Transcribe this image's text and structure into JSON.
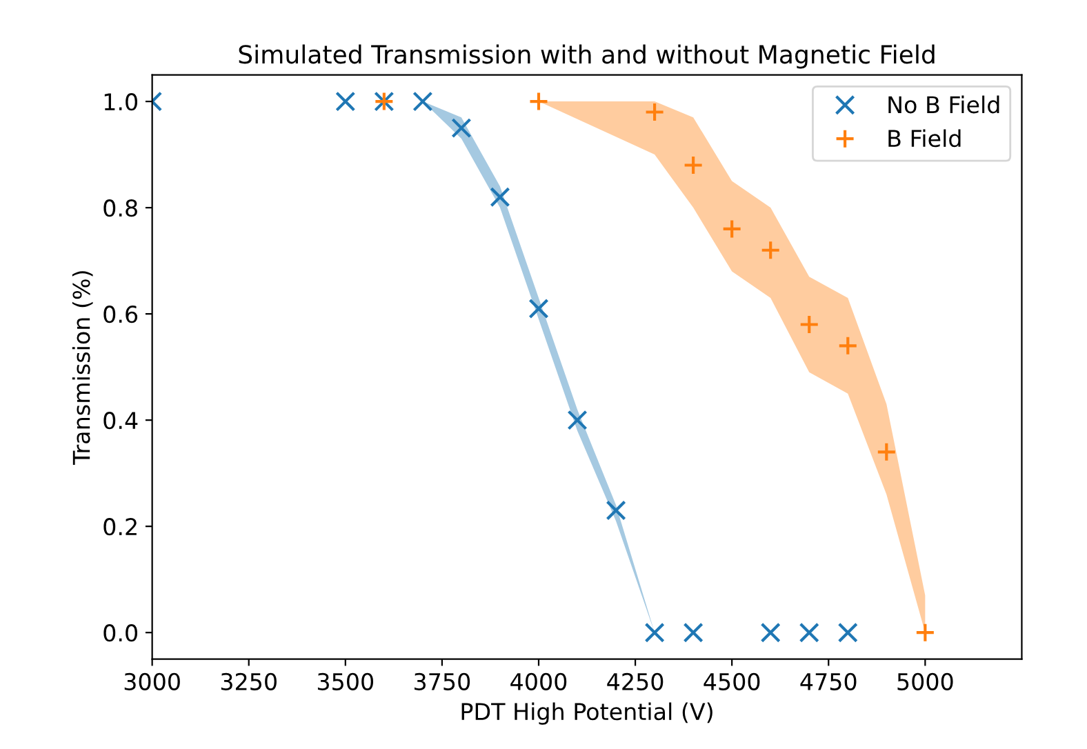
{
  "chart_data": {
    "type": "scatter",
    "title": "Simulated Transmission with and without Magnetic Field",
    "xlabel": "PDT High Potential (V)",
    "ylabel": "Transmission (%)",
    "xlim": [
      3000,
      5250
    ],
    "xticks": [
      3000,
      3250,
      3500,
      3750,
      4000,
      4250,
      4500,
      4750,
      5000
    ],
    "ylim": [
      -0.05,
      1.05
    ],
    "yticks": [
      {
        "value": 0,
        "label": "0.0"
      },
      0.2,
      0.4,
      0.6,
      0.8,
      {
        "value": 1,
        "label": "1.0"
      }
    ],
    "grid": false,
    "legend": "top right",
    "series": [
      {
        "name": "No B Field",
        "color": "#1f77b4",
        "marker": "cross",
        "x": [
          3000,
          3500,
          3600,
          3700,
          3800,
          3900,
          4000,
          4100,
          4200,
          4300,
          4400,
          4600,
          4700,
          4800
        ],
        "values": [
          1,
          1,
          1,
          1,
          0.95,
          0.82,
          0.61,
          0.4,
          0.23,
          0,
          0,
          0,
          0,
          0
        ],
        "lower": [
          null,
          null,
          null,
          1,
          0.93,
          0.8,
          0.59,
          0.38,
          0.21,
          0,
          null,
          null,
          null,
          null
        ],
        "upper": [
          null,
          null,
          null,
          1,
          0.97,
          0.84,
          0.63,
          0.42,
          0.24,
          0,
          null,
          null,
          null,
          null
        ]
      },
      {
        "name": "B Field",
        "color": "#ff7f0e",
        "marker": "plus",
        "x": [
          3600,
          4000,
          4300,
          4400,
          4500,
          4600,
          4700,
          4800,
          4900,
          5000
        ],
        "values": [
          1,
          1,
          0.98,
          0.88,
          0.76,
          0.72,
          0.58,
          0.54,
          0.34,
          0
        ],
        "lower": [
          null,
          1,
          0.9,
          0.8,
          0.68,
          0.63,
          0.49,
          0.45,
          0.26,
          0
        ],
        "upper": [
          null,
          1,
          1,
          0.97,
          0.85,
          0.8,
          0.67,
          0.63,
          0.43,
          0.07
        ]
      }
    ]
  }
}
